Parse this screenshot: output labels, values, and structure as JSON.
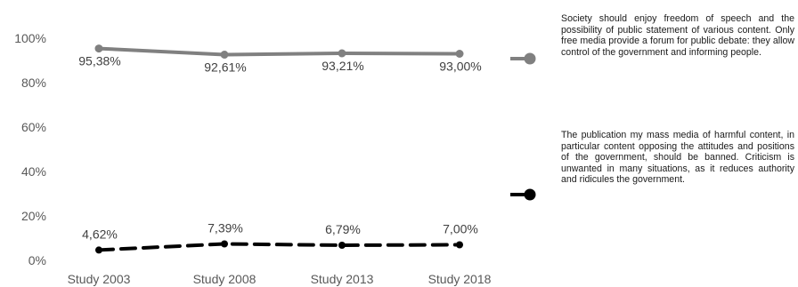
{
  "chart_data": {
    "type": "line",
    "categories": [
      "Study 2003",
      "Study 2008",
      "Study 2013",
      "Study 2018"
    ],
    "yticks": [
      "0%",
      "20%",
      "40%",
      "60%",
      "80%",
      "100%"
    ],
    "ylim": [
      0,
      100
    ],
    "grid": false,
    "legend_position": "right",
    "series": [
      {
        "name": "Society should enjoy freedom of speech and the possibility of public statement of various content. Only free media provide a forum for public debate: they allow control of the government and informing people.",
        "values": [
          95.38,
          92.61,
          93.21,
          93.0
        ],
        "labels": [
          "95,38%",
          "92,61%",
          "93,21%",
          "93,00%"
        ],
        "color": "#808080",
        "style": "solid"
      },
      {
        "name": "The publication my mass media of harmful content, in particular content opposing the attitudes and positions of the government, should be banned. Criticism is unwanted in many situations, as it reduces authority and ridicules the government.",
        "values": [
          4.62,
          7.39,
          6.79,
          7.0
        ],
        "labels": [
          "4,62%",
          "7,39%",
          "6,79%",
          "7,00%"
        ],
        "color": "#000000",
        "style": "dashed"
      }
    ]
  }
}
